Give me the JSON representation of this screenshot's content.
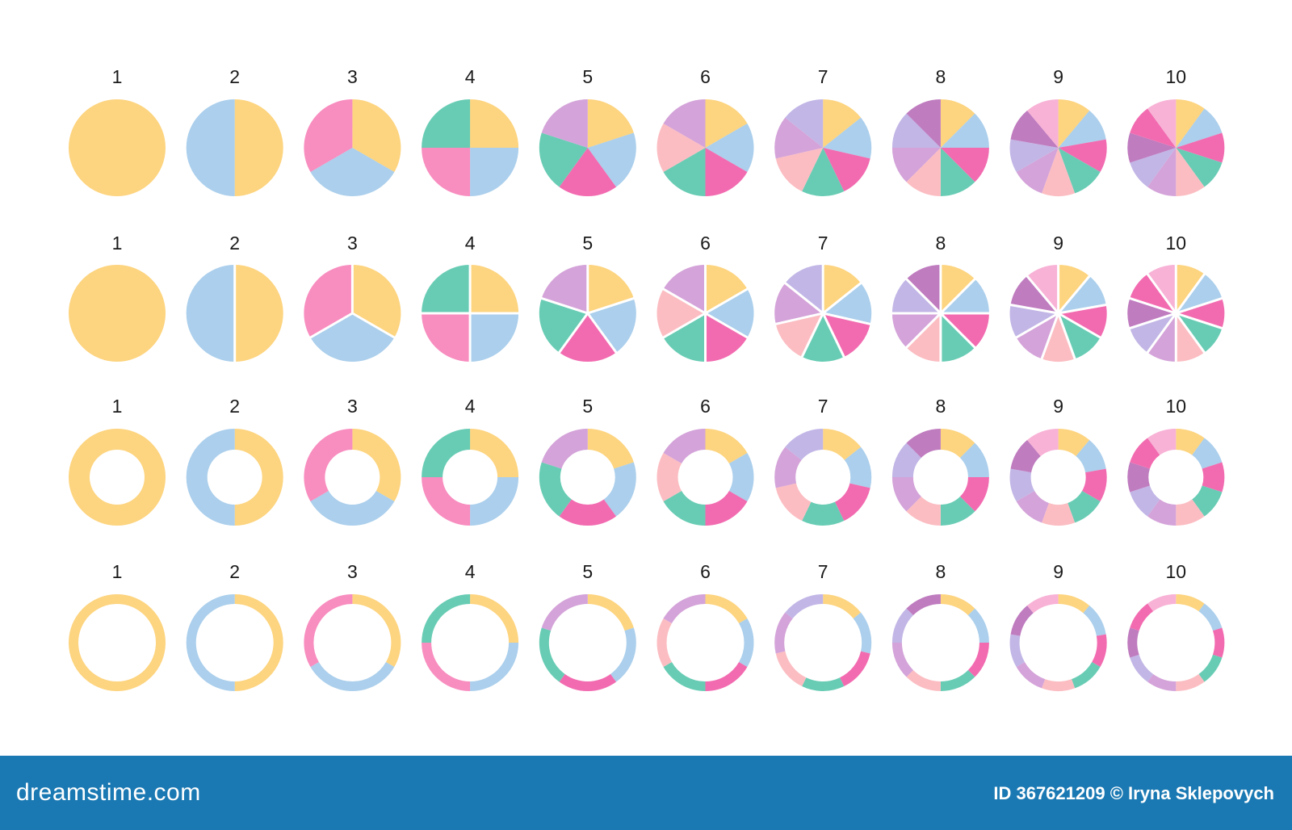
{
  "chart_data": {
    "type": "pie",
    "palette": [
      "#fdd47f",
      "#abcfec",
      "#f88dbf",
      "#68ccb4",
      "#f26bb0",
      "#d4a3d9",
      "#fbbdc2",
      "#c2b6e6",
      "#bf7cbf",
      "#f8b2d6"
    ],
    "slice_colors": {
      "1": [
        "#fdd47f"
      ],
      "2": [
        "#fdd47f",
        "#abcfec"
      ],
      "3": [
        "#fdd47f",
        "#abcfec",
        "#f88dbf"
      ],
      "4": [
        "#fdd47f",
        "#abcfec",
        "#f88dbf",
        "#68ccb4"
      ],
      "5": [
        "#fdd47f",
        "#abcfec",
        "#f26bb0",
        "#68ccb4",
        "#d4a3d9"
      ],
      "6": [
        "#fdd47f",
        "#abcfec",
        "#f26bb0",
        "#68ccb4",
        "#fbbdc2",
        "#d4a3d9"
      ],
      "7": [
        "#fdd47f",
        "#abcfec",
        "#f26bb0",
        "#68ccb4",
        "#fbbdc2",
        "#d4a3d9",
        "#c2b6e6"
      ],
      "8": [
        "#fdd47f",
        "#abcfec",
        "#f26bb0",
        "#68ccb4",
        "#fbbdc2",
        "#d4a3d9",
        "#c2b6e6",
        "#bf7cbf"
      ],
      "9": [
        "#fdd47f",
        "#abcfec",
        "#f26bb0",
        "#68ccb4",
        "#fbbdc2",
        "#d4a3d9",
        "#c2b6e6",
        "#bf7cbf",
        "#f8b2d6"
      ],
      "10": [
        "#fdd47f",
        "#abcfec",
        "#f26bb0",
        "#68ccb4",
        "#fbbdc2",
        "#d4a3d9",
        "#c2b6e6",
        "#bf7cbf",
        "#f26bb0",
        "#f8b2d6"
      ]
    },
    "rows": [
      {
        "style": "pie",
        "labels": [
          "1",
          "2",
          "3",
          "4",
          "5",
          "6",
          "7",
          "8",
          "9",
          "10"
        ],
        "slices": [
          1,
          2,
          3,
          4,
          5,
          6,
          7,
          8,
          9,
          10
        ]
      },
      {
        "style": "pie-separated",
        "labels": [
          "1",
          "2",
          "3",
          "4",
          "5",
          "6",
          "7",
          "8",
          "9",
          "10"
        ],
        "slices": [
          1,
          2,
          3,
          4,
          5,
          6,
          7,
          8,
          9,
          10
        ]
      },
      {
        "style": "donut-thick",
        "labels": [
          "1",
          "2",
          "3",
          "4",
          "5",
          "6",
          "7",
          "8",
          "9",
          "10"
        ],
        "slices": [
          1,
          2,
          3,
          4,
          5,
          6,
          7,
          8,
          9,
          10
        ]
      },
      {
        "style": "donut-thin",
        "labels": [
          "1",
          "2",
          "3",
          "4",
          "5",
          "6",
          "7",
          "8",
          "9",
          "10"
        ],
        "slices": [
          1,
          2,
          3,
          4,
          5,
          6,
          7,
          8,
          9,
          10
        ]
      }
    ]
  },
  "footer": {
    "brand": "dreamstime.com",
    "credit": "ID 367621209 © Iryna Sklepovych",
    "background": "#1a79b3"
  }
}
